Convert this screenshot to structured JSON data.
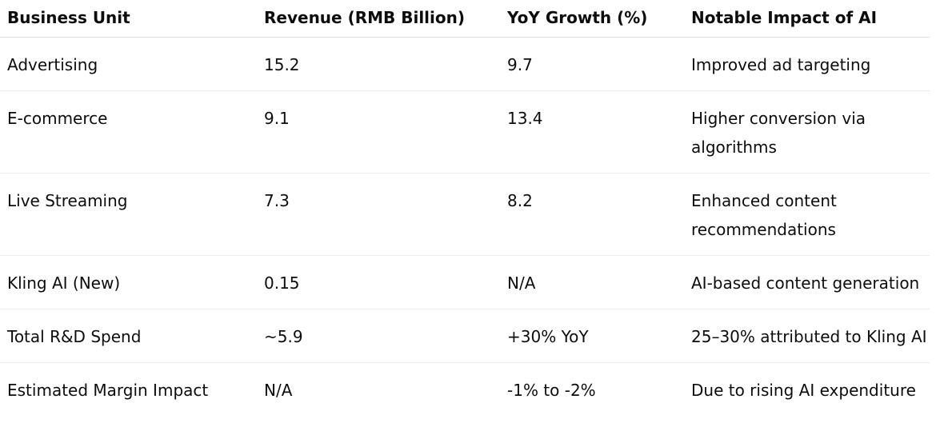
{
  "table": {
    "headers": [
      "Business Unit",
      "Revenue (RMB Billion)",
      "YoY Growth (%)",
      "Notable Impact of AI"
    ],
    "rows": [
      [
        "Advertising",
        "15.2",
        "9.7",
        "Improved ad targeting"
      ],
      [
        "E-commerce",
        "9.1",
        "13.4",
        "Higher conversion via algorithms"
      ],
      [
        "Live Streaming",
        "7.3",
        "8.2",
        "Enhanced content recommendations"
      ],
      [
        "Kling AI (New)",
        "0.15",
        "N/A",
        "AI-based content generation"
      ],
      [
        "Total R&D Spend",
        "~5.9",
        "+30% YoY",
        "25–30% attributed to Kling AI"
      ],
      [
        "Estimated Margin Impact",
        "N/A",
        "-1% to -2%",
        "Due to rising AI expenditure"
      ]
    ]
  }
}
